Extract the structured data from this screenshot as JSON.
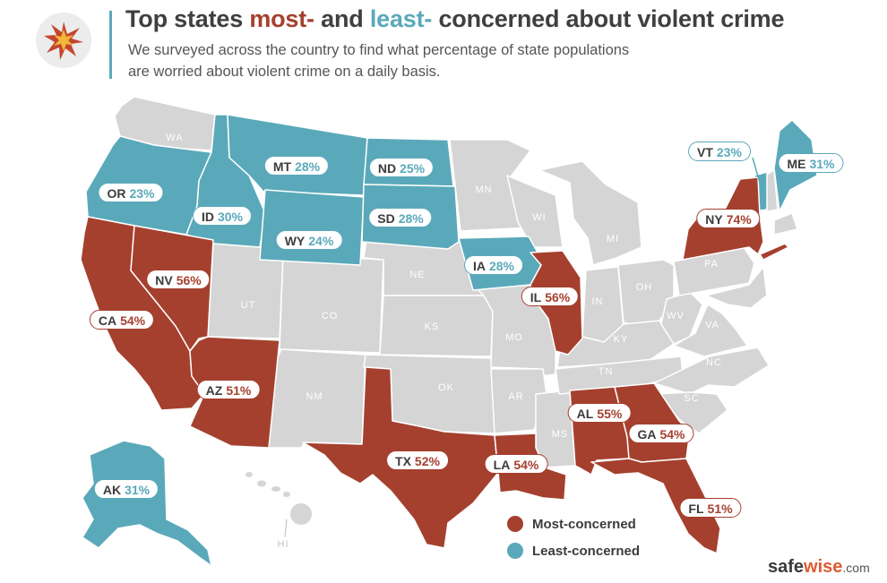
{
  "header": {
    "title_part1": "Top states ",
    "title_most": "most-",
    "title_part2": " and ",
    "title_least": "least-",
    "title_part3": " concerned about violent crime",
    "subtitle": "We surveyed across the country to find what percentage of state populations are worried about violent crime on a daily basis."
  },
  "colors": {
    "most_concerned": "#a5402f",
    "least_concerned": "#5aa9ba",
    "neutral": "#d5d5d5",
    "brand_accent": "#e05a35"
  },
  "badge_icon": "starburst-icon",
  "state_abbreviations": [
    "WA",
    "MN",
    "WI",
    "MI",
    "NE",
    "UT",
    "CO",
    "KS",
    "MO",
    "IN",
    "OH",
    "PA",
    "KY",
    "WV",
    "VA",
    "NC",
    "TN",
    "OK",
    "AR",
    "NM",
    "MS",
    "SC",
    "HI"
  ],
  "highlighted_states": [
    {
      "code": "MT",
      "pct": "28%",
      "group": "least"
    },
    {
      "code": "ND",
      "pct": "25%",
      "group": "least"
    },
    {
      "code": "OR",
      "pct": "23%",
      "group": "least"
    },
    {
      "code": "ID",
      "pct": "30%",
      "group": "least"
    },
    {
      "code": "SD",
      "pct": "28%",
      "group": "least"
    },
    {
      "code": "WY",
      "pct": "24%",
      "group": "least"
    },
    {
      "code": "IA",
      "pct": "28%",
      "group": "least"
    },
    {
      "code": "VT",
      "pct": "23%",
      "group": "least"
    },
    {
      "code": "ME",
      "pct": "31%",
      "group": "least"
    },
    {
      "code": "AK",
      "pct": "31%",
      "group": "least"
    },
    {
      "code": "NY",
      "pct": "74%",
      "group": "most"
    },
    {
      "code": "NV",
      "pct": "56%",
      "group": "most"
    },
    {
      "code": "IL",
      "pct": "56%",
      "group": "most"
    },
    {
      "code": "CA",
      "pct": "54%",
      "group": "most"
    },
    {
      "code": "AZ",
      "pct": "51%",
      "group": "most"
    },
    {
      "code": "AL",
      "pct": "55%",
      "group": "most"
    },
    {
      "code": "GA",
      "pct": "54%",
      "group": "most"
    },
    {
      "code": "TX",
      "pct": "52%",
      "group": "most"
    },
    {
      "code": "LA",
      "pct": "54%",
      "group": "most"
    },
    {
      "code": "FL",
      "pct": "51%",
      "group": "most"
    }
  ],
  "legend": {
    "most_label": "Most-concerned",
    "least_label": "Least-concerned"
  },
  "brand": {
    "safe": "safe",
    "wise": "wise",
    "domain": ".com"
  }
}
